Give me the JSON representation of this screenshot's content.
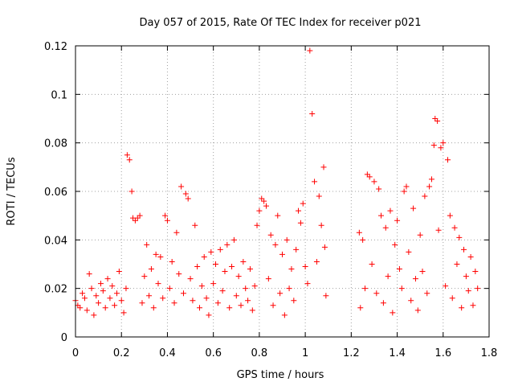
{
  "chart_data": {
    "type": "scatter",
    "title": "Day 057 of 2015, Rate Of TEC Index for receiver p021",
    "xlabel": "GPS time / hours",
    "ylabel": "ROTI / TECUs",
    "xlim": [
      0,
      1.8
    ],
    "ylim": [
      0,
      0.12
    ],
    "x_ticks": [
      0,
      0.2,
      0.4,
      0.6,
      0.8,
      1,
      1.2,
      1.4,
      1.6,
      1.8
    ],
    "x_tick_labels": [
      "0",
      "0.2",
      "0.4",
      "0.6",
      "0.8",
      "1",
      "1.2",
      "1.4",
      "1.6",
      "1.8"
    ],
    "y_ticks": [
      0,
      0.02,
      0.04,
      0.06,
      0.08,
      0.1,
      0.12
    ],
    "y_tick_labels": [
      "0",
      "0.02",
      "0.04",
      "0.06",
      "0.08",
      "0.1",
      "0.12"
    ],
    "grid": true,
    "marker": "+",
    "marker_color": "#ff0000",
    "series": [
      {
        "points": [
          [
            0.0,
            0.015
          ],
          [
            0.01,
            0.013
          ],
          [
            0.02,
            0.012
          ],
          [
            0.03,
            0.018
          ],
          [
            0.04,
            0.016
          ],
          [
            0.05,
            0.011
          ],
          [
            0.06,
            0.026
          ],
          [
            0.07,
            0.02
          ],
          [
            0.08,
            0.009
          ],
          [
            0.09,
            0.017
          ],
          [
            0.1,
            0.014
          ],
          [
            0.11,
            0.022
          ],
          [
            0.12,
            0.019
          ],
          [
            0.13,
            0.012
          ],
          [
            0.14,
            0.024
          ],
          [
            0.15,
            0.016
          ],
          [
            0.16,
            0.021
          ],
          [
            0.17,
            0.013
          ],
          [
            0.18,
            0.018
          ],
          [
            0.19,
            0.027
          ],
          [
            0.2,
            0.015
          ],
          [
            0.21,
            0.01
          ],
          [
            0.22,
            0.02
          ],
          [
            0.225,
            0.075
          ],
          [
            0.235,
            0.073
          ],
          [
            0.245,
            0.06
          ],
          [
            0.25,
            0.049
          ],
          [
            0.26,
            0.048
          ],
          [
            0.27,
            0.049
          ],
          [
            0.28,
            0.05
          ],
          [
            0.29,
            0.014
          ],
          [
            0.3,
            0.025
          ],
          [
            0.31,
            0.038
          ],
          [
            0.32,
            0.017
          ],
          [
            0.33,
            0.028
          ],
          [
            0.34,
            0.012
          ],
          [
            0.35,
            0.034
          ],
          [
            0.36,
            0.022
          ],
          [
            0.37,
            0.033
          ],
          [
            0.38,
            0.016
          ],
          [
            0.39,
            0.05
          ],
          [
            0.4,
            0.048
          ],
          [
            0.41,
            0.02
          ],
          [
            0.42,
            0.031
          ],
          [
            0.43,
            0.014
          ],
          [
            0.44,
            0.043
          ],
          [
            0.45,
            0.026
          ],
          [
            0.46,
            0.062
          ],
          [
            0.47,
            0.018
          ],
          [
            0.48,
            0.059
          ],
          [
            0.49,
            0.057
          ],
          [
            0.5,
            0.024
          ],
          [
            0.51,
            0.015
          ],
          [
            0.52,
            0.046
          ],
          [
            0.53,
            0.029
          ],
          [
            0.54,
            0.012
          ],
          [
            0.55,
            0.021
          ],
          [
            0.56,
            0.033
          ],
          [
            0.57,
            0.016
          ],
          [
            0.58,
            0.009
          ],
          [
            0.59,
            0.035
          ],
          [
            0.6,
            0.022
          ],
          [
            0.61,
            0.03
          ],
          [
            0.62,
            0.014
          ],
          [
            0.63,
            0.036
          ],
          [
            0.64,
            0.019
          ],
          [
            0.65,
            0.027
          ],
          [
            0.66,
            0.038
          ],
          [
            0.67,
            0.012
          ],
          [
            0.68,
            0.029
          ],
          [
            0.69,
            0.04
          ],
          [
            0.7,
            0.017
          ],
          [
            0.71,
            0.025
          ],
          [
            0.72,
            0.013
          ],
          [
            0.73,
            0.031
          ],
          [
            0.74,
            0.02
          ],
          [
            0.75,
            0.015
          ],
          [
            0.76,
            0.028
          ],
          [
            0.77,
            0.011
          ],
          [
            0.78,
            0.021
          ],
          [
            0.79,
            0.046
          ],
          [
            0.8,
            0.052
          ],
          [
            0.81,
            0.057
          ],
          [
            0.82,
            0.056
          ],
          [
            0.83,
            0.054
          ],
          [
            0.84,
            0.024
          ],
          [
            0.85,
            0.042
          ],
          [
            0.86,
            0.013
          ],
          [
            0.87,
            0.038
          ],
          [
            0.88,
            0.05
          ],
          [
            0.89,
            0.018
          ],
          [
            0.9,
            0.034
          ],
          [
            0.91,
            0.009
          ],
          [
            0.92,
            0.04
          ],
          [
            0.93,
            0.02
          ],
          [
            0.94,
            0.028
          ],
          [
            0.95,
            0.015
          ],
          [
            0.96,
            0.036
          ],
          [
            0.97,
            0.052
          ],
          [
            0.98,
            0.047
          ],
          [
            0.99,
            0.055
          ],
          [
            1.0,
            0.029
          ],
          [
            1.01,
            0.022
          ],
          [
            1.02,
            0.118
          ],
          [
            1.03,
            0.092
          ],
          [
            1.04,
            0.064
          ],
          [
            1.05,
            0.031
          ],
          [
            1.06,
            0.058
          ],
          [
            1.07,
            0.046
          ],
          [
            1.08,
            0.07
          ],
          [
            1.085,
            0.037
          ],
          [
            1.09,
            0.017
          ],
          [
            1.235,
            0.043
          ],
          [
            1.24,
            0.012
          ],
          [
            1.25,
            0.04
          ],
          [
            1.26,
            0.02
          ],
          [
            1.27,
            0.067
          ],
          [
            1.28,
            0.066
          ],
          [
            1.29,
            0.03
          ],
          [
            1.3,
            0.064
          ],
          [
            1.31,
            0.018
          ],
          [
            1.32,
            0.061
          ],
          [
            1.33,
            0.05
          ],
          [
            1.34,
            0.014
          ],
          [
            1.35,
            0.045
          ],
          [
            1.36,
            0.025
          ],
          [
            1.37,
            0.052
          ],
          [
            1.38,
            0.01
          ],
          [
            1.39,
            0.038
          ],
          [
            1.4,
            0.048
          ],
          [
            1.41,
            0.028
          ],
          [
            1.42,
            0.02
          ],
          [
            1.43,
            0.06
          ],
          [
            1.44,
            0.062
          ],
          [
            1.45,
            0.035
          ],
          [
            1.46,
            0.015
          ],
          [
            1.47,
            0.053
          ],
          [
            1.48,
            0.024
          ],
          [
            1.49,
            0.011
          ],
          [
            1.5,
            0.042
          ],
          [
            1.51,
            0.027
          ],
          [
            1.52,
            0.058
          ],
          [
            1.53,
            0.018
          ],
          [
            1.54,
            0.062
          ],
          [
            1.55,
            0.065
          ],
          [
            1.56,
            0.079
          ],
          [
            1.565,
            0.09
          ],
          [
            1.575,
            0.089
          ],
          [
            1.58,
            0.044
          ],
          [
            1.59,
            0.078
          ],
          [
            1.6,
            0.08
          ],
          [
            1.61,
            0.021
          ],
          [
            1.62,
            0.073
          ],
          [
            1.63,
            0.05
          ],
          [
            1.64,
            0.016
          ],
          [
            1.65,
            0.045
          ],
          [
            1.66,
            0.03
          ],
          [
            1.67,
            0.041
          ],
          [
            1.68,
            0.012
          ],
          [
            1.69,
            0.036
          ],
          [
            1.7,
            0.025
          ],
          [
            1.71,
            0.019
          ],
          [
            1.72,
            0.033
          ],
          [
            1.73,
            0.013
          ],
          [
            1.74,
            0.027
          ],
          [
            1.75,
            0.02
          ]
        ]
      }
    ]
  }
}
